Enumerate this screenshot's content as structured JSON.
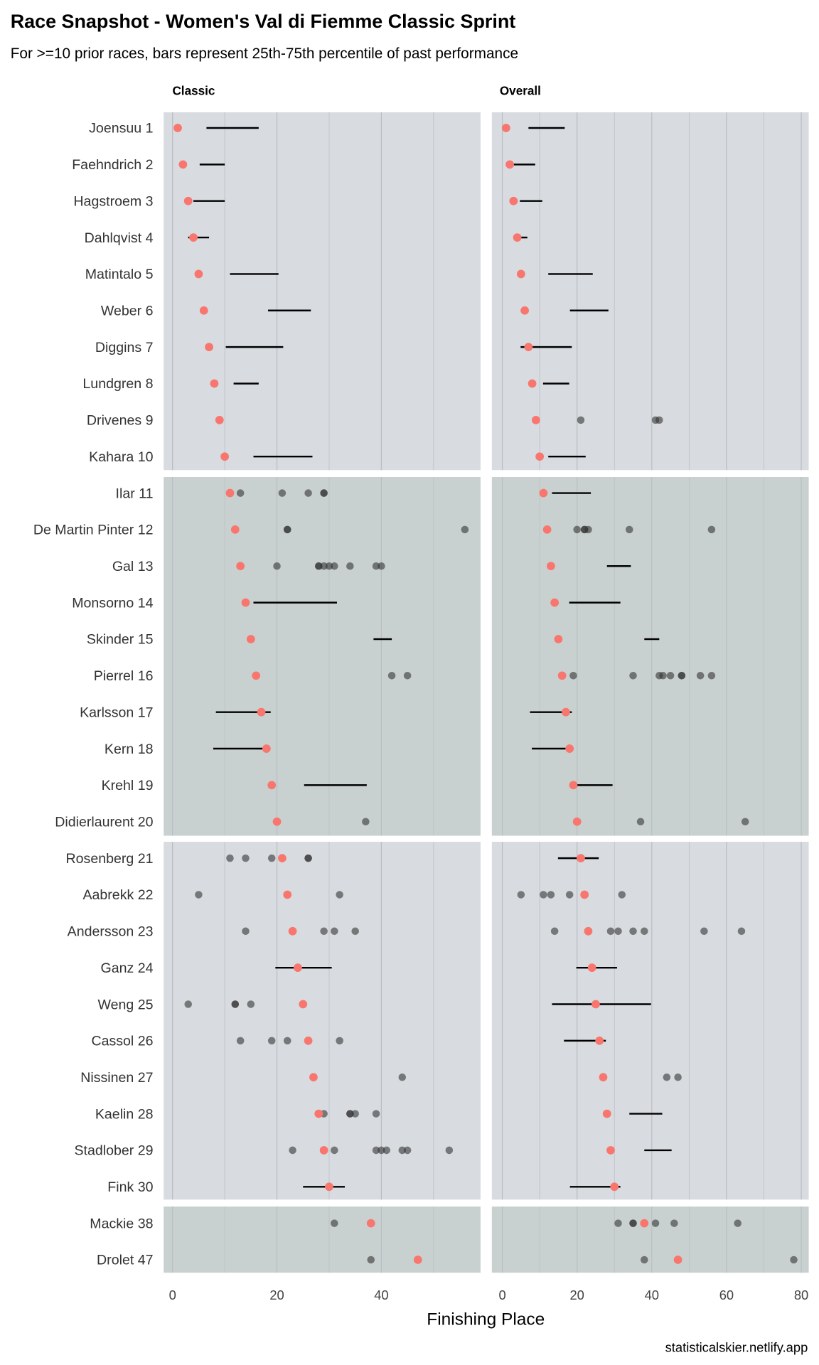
{
  "chart_data": {
    "type": "scatter",
    "title": "Race Snapshot -  Women's Val di Fiemme Classic Sprint",
    "subtitle": "For >=10 prior races, bars represent 25th-75th percentile of past performance",
    "xlabel": "Finishing Place",
    "caption": "statisticalskier.netlify.app",
    "panels": [
      "Classic",
      "Overall"
    ],
    "xlim": {
      "Classic": [
        -1.7,
        59
      ],
      "Overall": [
        -2.8,
        82
      ]
    },
    "xticks": {
      "Classic": [
        "0",
        "20",
        "40"
      ],
      "Overall": [
        "0",
        "20",
        "40",
        "60",
        "80"
      ]
    },
    "grid": true,
    "colors": {
      "current": "#f8766d",
      "past": "#333333",
      "bar": "#000000",
      "bandA": "#d8dbe0",
      "bandB": "#c9d1d0"
    },
    "rows": [
      {
        "name": "Joensuu 1",
        "place": 1,
        "classic": {
          "bar": [
            6.5,
            16.5
          ]
        },
        "overall": {
          "bar": [
            7,
            16.7
          ]
        }
      },
      {
        "name": "Faehndrich 2",
        "place": 2,
        "classic": {
          "bar": [
            5.2,
            10
          ]
        },
        "overall": {
          "bar": [
            1.9,
            8.8
          ]
        }
      },
      {
        "name": "Hagstroem 3",
        "place": 3,
        "classic": {
          "bar": [
            4,
            10
          ]
        },
        "overall": {
          "bar": [
            4.7,
            10.7
          ]
        }
      },
      {
        "name": "Dahlqvist 4",
        "place": 4,
        "classic": {
          "bar": [
            3,
            7
          ]
        },
        "overall": {
          "bar": [
            4.7,
            6.7
          ]
        }
      },
      {
        "name": "Matintalo 5",
        "place": 5,
        "classic": {
          "bar": [
            11,
            20.3
          ]
        },
        "overall": {
          "bar": [
            12.3,
            24.2
          ]
        }
      },
      {
        "name": "Weber 6",
        "place": 6,
        "classic": {
          "bar": [
            18.3,
            26.5
          ]
        },
        "overall": {
          "bar": [
            18.1,
            28.4
          ]
        }
      },
      {
        "name": "Diggins 7",
        "place": 7,
        "classic": {
          "bar": [
            10.2,
            21.2
          ]
        },
        "overall": {
          "bar": [
            4.9,
            18.6
          ]
        }
      },
      {
        "name": "Lundgren 8",
        "place": 8,
        "classic": {
          "bar": [
            11.7,
            16.5
          ]
        },
        "overall": {
          "bar": [
            10.9,
            17.9
          ]
        }
      },
      {
        "name": "Drivenes 9",
        "place": 9,
        "classic": {
          "points": []
        },
        "overall": {
          "points": [
            21,
            41,
            42
          ]
        }
      },
      {
        "name": "Kahara 10",
        "place": 10,
        "classic": {
          "bar": [
            15.5,
            26.8
          ]
        },
        "overall": {
          "bar": [
            12.3,
            22.3
          ]
        }
      },
      {
        "name": "Ilar 11",
        "place": 11,
        "classic": {
          "points": [
            13,
            21,
            26,
            29,
            29
          ]
        },
        "overall": {
          "bar": [
            13.3,
            23.7
          ]
        }
      },
      {
        "name": "De Martin Pinter 12",
        "place": 12,
        "classic": {
          "points": [
            22,
            22,
            56
          ]
        },
        "overall": {
          "points": [
            20,
            22,
            22,
            23,
            34,
            56
          ]
        }
      },
      {
        "name": "Gal 13",
        "place": 13,
        "classic": {
          "points": [
            20,
            28,
            28,
            29,
            30,
            31,
            34,
            39,
            40
          ]
        },
        "overall": {
          "bar": [
            28,
            34.4
          ]
        }
      },
      {
        "name": "Monsorno 14",
        "place": 14,
        "classic": {
          "bar": [
            15.5,
            31.5
          ]
        },
        "overall": {
          "bar": [
            17.9,
            31.6
          ]
        }
      },
      {
        "name": "Skinder 15",
        "place": 15,
        "classic": {
          "bar": [
            38.5,
            42
          ]
        },
        "overall": {
          "bar": [
            38,
            42
          ]
        }
      },
      {
        "name": "Pierrel 16",
        "place": 16,
        "classic": {
          "points": [
            42,
            45
          ]
        },
        "overall": {
          "points": [
            19,
            35,
            42,
            43,
            45,
            48,
            48,
            53,
            56
          ]
        }
      },
      {
        "name": "Karlsson 17",
        "place": 17,
        "classic": {
          "bar": [
            8.3,
            18.8
          ]
        },
        "overall": {
          "bar": [
            7.4,
            18.6
          ]
        }
      },
      {
        "name": "Kern 18",
        "place": 18,
        "classic": {
          "bar": [
            7.8,
            18
          ]
        },
        "overall": {
          "bar": [
            7.9,
            17.9
          ]
        }
      },
      {
        "name": "Krehl 19",
        "place": 19,
        "classic": {
          "bar": [
            25.2,
            37.2
          ]
        },
        "overall": {
          "bar": [
            18.8,
            29.5
          ]
        }
      },
      {
        "name": "Didierlaurent 20",
        "place": 20,
        "classic": {
          "points": [
            37
          ]
        },
        "overall": {
          "points": [
            37,
            65
          ]
        }
      },
      {
        "name": "Rosenberg 21",
        "place": 21,
        "classic": {
          "points": [
            11,
            14,
            19,
            26,
            26
          ]
        },
        "overall": {
          "bar": [
            14.9,
            25.8
          ]
        }
      },
      {
        "name": "Aabrekk 22",
        "place": 22,
        "classic": {
          "points": [
            5,
            22,
            32
          ]
        },
        "overall": {
          "points": [
            5,
            11,
            13,
            18,
            32
          ]
        }
      },
      {
        "name": "Andersson 23",
        "place": 23,
        "classic": {
          "points": [
            14,
            29,
            31,
            35
          ]
        },
        "overall": {
          "points": [
            14,
            29,
            31,
            35,
            38,
            54,
            64
          ]
        }
      },
      {
        "name": "Ganz 24",
        "place": 24,
        "classic": {
          "bar": [
            19.7,
            30.5
          ]
        },
        "overall": {
          "bar": [
            19.8,
            30.7
          ]
        }
      },
      {
        "name": "Weng 25",
        "place": 25,
        "classic": {
          "points": [
            3,
            12,
            12,
            15
          ]
        },
        "overall": {
          "bar": [
            13.3,
            39.8
          ]
        }
      },
      {
        "name": "Cassol 26",
        "place": 26,
        "classic": {
          "points": [
            13,
            19,
            22,
            26,
            32
          ]
        },
        "overall": {
          "bar": [
            16.5,
            27.7
          ]
        }
      },
      {
        "name": "Nissinen 27",
        "place": 27,
        "classic": {
          "points": [
            44
          ]
        },
        "overall": {
          "points": [
            44,
            47
          ]
        }
      },
      {
        "name": "Kaelin 28",
        "place": 28,
        "classic": {
          "points": [
            29,
            34,
            34,
            35,
            39
          ]
        },
        "overall": {
          "bar": [
            34,
            42.8
          ]
        }
      },
      {
        "name": "Stadlober 29",
        "place": 29,
        "classic": {
          "points": [
            23,
            31,
            39,
            40,
            41,
            44,
            45,
            53
          ]
        },
        "overall": {
          "bar": [
            38,
            45.3
          ]
        }
      },
      {
        "name": "Fink 30",
        "place": 30,
        "classic": {
          "bar": [
            25,
            33
          ]
        },
        "overall": {
          "bar": [
            18.1,
            31.6
          ]
        }
      },
      {
        "name": "Mackie 38",
        "place": 38,
        "classic": {
          "points": [
            31
          ]
        },
        "overall": {
          "points": [
            31,
            35,
            35,
            41,
            46,
            63
          ]
        }
      },
      {
        "name": "Drolet 47",
        "place": 47,
        "classic": {
          "points": [
            38
          ]
        },
        "overall": {
          "points": [
            38,
            78
          ]
        }
      }
    ],
    "groups": [
      [
        0,
        9
      ],
      [
        10,
        19
      ],
      [
        20,
        29
      ],
      [
        30,
        31
      ]
    ]
  }
}
